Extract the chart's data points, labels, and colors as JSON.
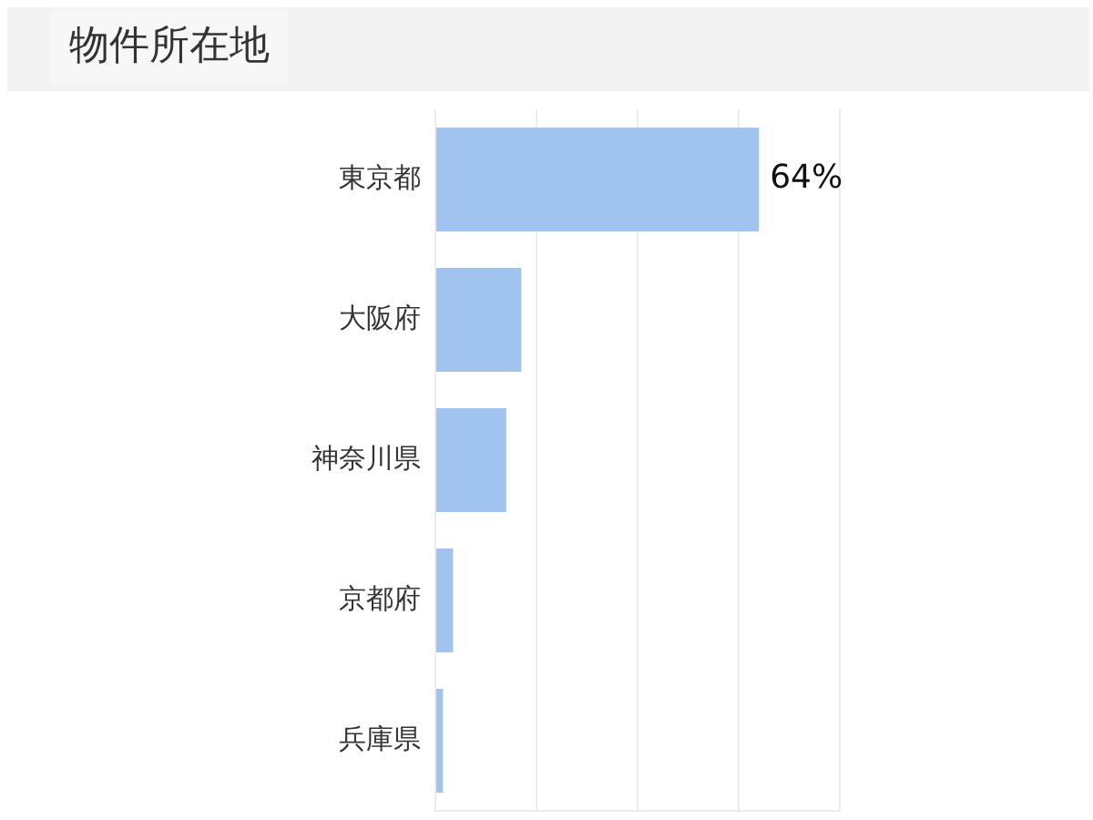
{
  "chart_data": {
    "type": "bar",
    "orientation": "horizontal",
    "title": "物件所在地",
    "categories": [
      "東京都",
      "大阪府",
      "神奈川県",
      "京都府",
      "兵庫県"
    ],
    "values": [
      64,
      17,
      14,
      3.5,
      1.5
    ],
    "value_labels": [
      "64%",
      null,
      null,
      null,
      null
    ],
    "xlim": [
      0,
      80
    ],
    "xticks": [
      {
        "value": 0,
        "label": null
      },
      {
        "value": 20,
        "label": null
      },
      {
        "value": 40,
        "label": null
      },
      {
        "value": 60,
        "label": null
      },
      {
        "value": 80,
        "label": null
      }
    ],
    "color": "#a0c3f0",
    "grid": "x",
    "tick_labels": "y"
  }
}
